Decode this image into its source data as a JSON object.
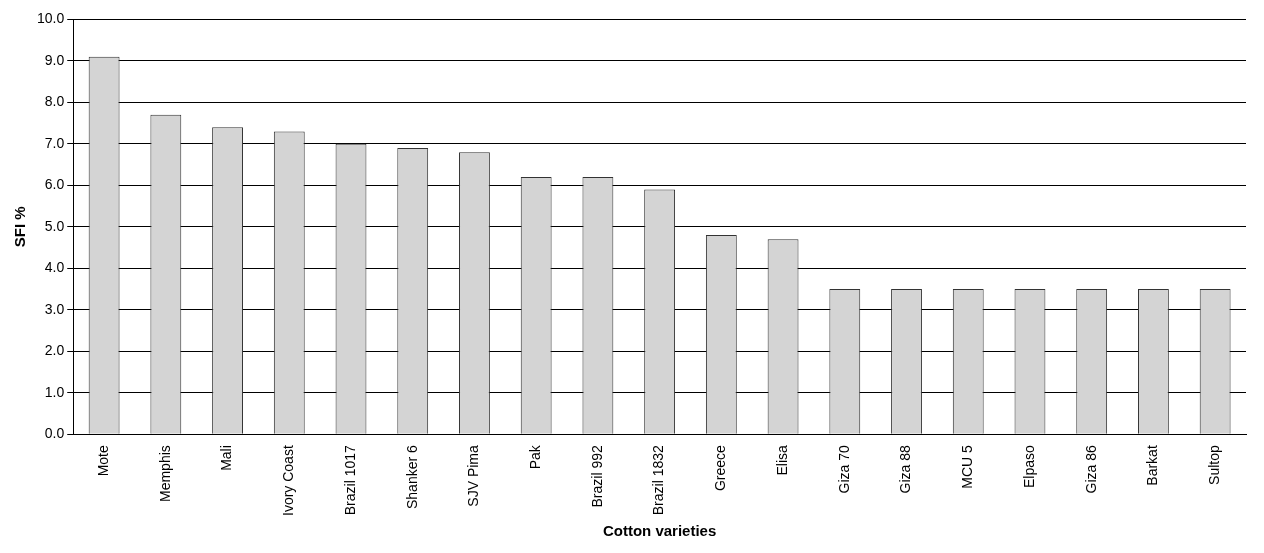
{
  "chart_data": {
    "type": "bar",
    "xlabel": "Cotton varieties",
    "ylabel": "SFI %",
    "categories": [
      "Mote",
      "Memphis",
      "Mali",
      "Ivory Coast",
      "Brazil 1017",
      "Shanker 6",
      "SJV Pima",
      "Pak",
      "Brazil 992",
      "Brazil 1832",
      "Greece",
      "Elisa",
      "Giza 70",
      "Giza 88",
      "MCU 5",
      "Elpaso",
      "Giza 86",
      "Barkat",
      "Sultop"
    ],
    "values": [
      9.1,
      7.7,
      7.4,
      7.3,
      7.0,
      6.9,
      6.8,
      6.2,
      6.2,
      5.9,
      4.8,
      4.7,
      3.5,
      3.5,
      3.5,
      3.5,
      3.5,
      3.5,
      3.5
    ],
    "color": "#d4d4d4",
    "ylim": [
      0,
      10
    ],
    "yticks": [
      {
        "value": 0,
        "label": "0.0"
      },
      {
        "value": 1,
        "label": "1.0"
      },
      {
        "value": 2,
        "label": "2.0"
      },
      {
        "value": 3,
        "label": "3.0"
      },
      {
        "value": 4,
        "label": "4.0"
      },
      {
        "value": 5,
        "label": "5.0"
      },
      {
        "value": 6,
        "label": "6.0"
      },
      {
        "value": 7,
        "label": "7.0"
      },
      {
        "value": 8,
        "label": "8.0"
      },
      {
        "value": 9,
        "label": "9.0"
      },
      {
        "value": 10,
        "label": "10.0"
      }
    ],
    "grid": "y"
  }
}
